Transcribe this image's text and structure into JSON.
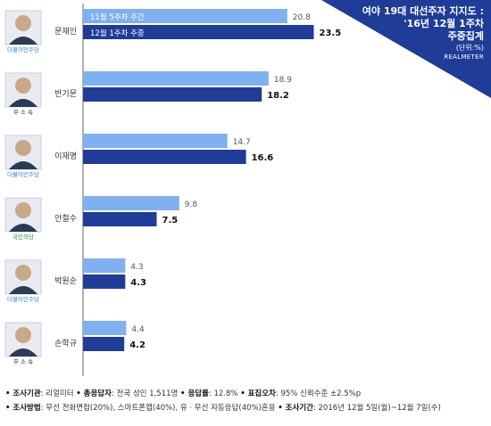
{
  "header": {
    "title_line1": "여야 19대 대선주자 지지도 :",
    "title_line2": "'16년 12월 1주차",
    "title_line3": "주중집계",
    "unit": "(단위:%)",
    "brand": "REALMETER"
  },
  "colors": {
    "series1": "#7fb0f0",
    "series2": "#1f3c98",
    "corner_bg": "#1f3c98",
    "axis_line": "#666666"
  },
  "candidates": [
    {
      "name": "문재인",
      "party": "더불어민주당"
    },
    {
      "name": "반기문",
      "party": "무 소 속"
    },
    {
      "name": "이재명",
      "party": "더불어민주당"
    },
    {
      "name": "안철수",
      "party": "국민의당"
    },
    {
      "name": "박원순",
      "party": "더불어민주당"
    },
    {
      "name": "손학규",
      "party": "무 소 속"
    }
  ],
  "chart_data": {
    "type": "bar",
    "orientation": "horizontal",
    "categories": [
      "문재인",
      "반기문",
      "이재명",
      "안철수",
      "박원순",
      "손학규"
    ],
    "series": [
      {
        "name": "11월 5주차 주간",
        "values": [
          20.8,
          18.9,
          14.7,
          9.8,
          4.3,
          4.4
        ]
      },
      {
        "name": "12월 1주차 주중",
        "values": [
          23.5,
          18.2,
          16.6,
          7.5,
          4.3,
          4.2
        ]
      }
    ],
    "value_labels": [
      [
        "20.8",
        "18.9",
        "14.7",
        "9.8",
        "4.3",
        "4.4"
      ],
      [
        "23.5",
        "18.2",
        "16.6",
        "7.5",
        "4.3",
        "4.2"
      ]
    ],
    "legend_placement": "inside-bars-top"
  },
  "footer": {
    "line1": [
      {
        "k": "• 조사기관",
        "v": ": 리얼미터"
      },
      {
        "k": "• 총응답자",
        "v": ": 전국 성인 1,511명"
      },
      {
        "k": "• 응답률",
        "v": ": 12.8%"
      },
      {
        "k": "• 표집오차",
        "v": ": 95% 신뢰수준 ±2.5%p"
      }
    ],
    "line2": [
      {
        "k": "• 조사방법",
        "v": ": 무선 전화면접(20%), 스마트폰앱(40%), 유 · 무선 자동응답(40%)혼용"
      },
      {
        "k": "• 조사기간",
        "v": ": 2016년 12월 5일(월)~12월 7일(수)"
      }
    ]
  }
}
